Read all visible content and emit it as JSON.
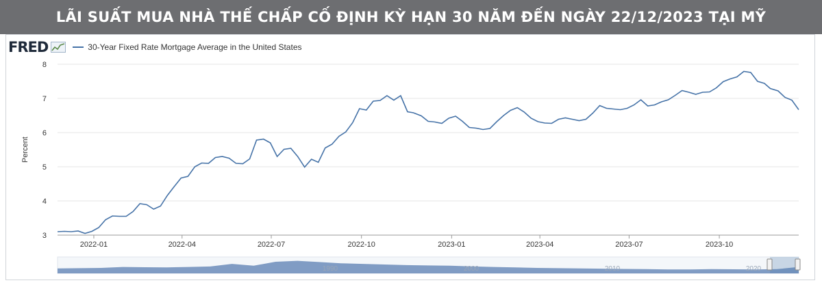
{
  "banner": {
    "title": "LÃI SUẤT MUA NHÀ THẾ CHẤP CỐ ĐỊNH KỲ HẠN 30 NĂM ĐẾN NGÀY 22/12/2023 TẠI MỸ"
  },
  "source": {
    "logo_text": "FRED",
    "logo_icon": "line-chart-icon"
  },
  "colors": {
    "banner_bg": "#6d6e71",
    "series_line": "#4572a7",
    "navigator_fill": "#6b8cba"
  },
  "chart_data": {
    "type": "line",
    "title": "",
    "xlabel": "",
    "ylabel": "Percent",
    "ylim": [
      3,
      8
    ],
    "yticks": [
      "3",
      "4",
      "5",
      "6",
      "7",
      "8"
    ],
    "xtick_labels": [
      "2022-01",
      "2022-04",
      "2022-07",
      "2022-10",
      "2023-01",
      "2023-04",
      "2023-07",
      "2023-10"
    ],
    "grid": true,
    "legend": "top-left",
    "series": [
      {
        "name": "30-Year Fixed Rate Mortgage Average in the United States",
        "x": [
          "2021-11-25",
          "2021-12-02",
          "2021-12-09",
          "2021-12-16",
          "2021-12-23",
          "2021-12-30",
          "2022-01-06",
          "2022-01-13",
          "2022-01-20",
          "2022-01-27",
          "2022-02-03",
          "2022-02-10",
          "2022-02-17",
          "2022-02-24",
          "2022-03-03",
          "2022-03-10",
          "2022-03-17",
          "2022-03-24",
          "2022-03-31",
          "2022-04-07",
          "2022-04-14",
          "2022-04-21",
          "2022-04-28",
          "2022-05-05",
          "2022-05-12",
          "2022-05-19",
          "2022-05-26",
          "2022-06-02",
          "2022-06-09",
          "2022-06-16",
          "2022-06-23",
          "2022-06-30",
          "2022-07-07",
          "2022-07-14",
          "2022-07-21",
          "2022-07-28",
          "2022-08-04",
          "2022-08-11",
          "2022-08-18",
          "2022-08-25",
          "2022-09-01",
          "2022-09-08",
          "2022-09-15",
          "2022-09-22",
          "2022-09-29",
          "2022-10-06",
          "2022-10-13",
          "2022-10-20",
          "2022-10-27",
          "2022-11-03",
          "2022-11-10",
          "2022-11-17",
          "2022-11-23",
          "2022-12-01",
          "2022-12-08",
          "2022-12-15",
          "2022-12-22",
          "2022-12-29",
          "2023-01-05",
          "2023-01-12",
          "2023-01-19",
          "2023-01-26",
          "2023-02-02",
          "2023-02-09",
          "2023-02-16",
          "2023-02-23",
          "2023-03-02",
          "2023-03-09",
          "2023-03-16",
          "2023-03-23",
          "2023-03-30",
          "2023-04-06",
          "2023-04-13",
          "2023-04-20",
          "2023-04-27",
          "2023-05-04",
          "2023-05-11",
          "2023-05-18",
          "2023-05-25",
          "2023-06-01",
          "2023-06-08",
          "2023-06-15",
          "2023-06-22",
          "2023-06-29",
          "2023-07-06",
          "2023-07-13",
          "2023-07-20",
          "2023-07-27",
          "2023-08-03",
          "2023-08-10",
          "2023-08-17",
          "2023-08-24",
          "2023-08-31",
          "2023-09-07",
          "2023-09-14",
          "2023-09-21",
          "2023-09-28",
          "2023-10-05",
          "2023-10-12",
          "2023-10-19",
          "2023-10-26",
          "2023-11-02",
          "2023-11-09",
          "2023-11-16",
          "2023-11-22",
          "2023-11-30",
          "2023-12-07",
          "2023-12-14",
          "2023-12-21"
        ],
        "y": [
          3.1,
          3.11,
          3.1,
          3.12,
          3.05,
          3.11,
          3.22,
          3.45,
          3.56,
          3.55,
          3.55,
          3.69,
          3.92,
          3.89,
          3.76,
          3.85,
          4.16,
          4.42,
          4.67,
          4.72,
          5.0,
          5.11,
          5.1,
          5.27,
          5.3,
          5.25,
          5.1,
          5.09,
          5.23,
          5.78,
          5.81,
          5.7,
          5.3,
          5.51,
          5.54,
          5.3,
          4.99,
          5.22,
          5.13,
          5.55,
          5.66,
          5.89,
          6.02,
          6.29,
          6.7,
          6.66,
          6.92,
          6.94,
          7.08,
          6.95,
          7.08,
          6.61,
          6.58,
          6.49,
          6.33,
          6.31,
          6.27,
          6.42,
          6.48,
          6.33,
          6.15,
          6.13,
          6.09,
          6.12,
          6.32,
          6.5,
          6.65,
          6.73,
          6.6,
          6.42,
          6.32,
          6.28,
          6.27,
          6.39,
          6.43,
          6.39,
          6.35,
          6.39,
          6.57,
          6.79,
          6.71,
          6.69,
          6.67,
          6.71,
          6.81,
          6.96,
          6.78,
          6.81,
          6.9,
          6.96,
          7.09,
          7.23,
          7.18,
          7.12,
          7.18,
          7.19,
          7.31,
          7.49,
          7.57,
          7.63,
          7.79,
          7.76,
          7.5,
          7.44,
          7.29,
          7.22,
          7.03,
          6.95,
          6.67
        ]
      }
    ],
    "navigator": {
      "tick_labels": [
        "1990",
        "2000",
        "2010",
        "2020"
      ]
    }
  }
}
